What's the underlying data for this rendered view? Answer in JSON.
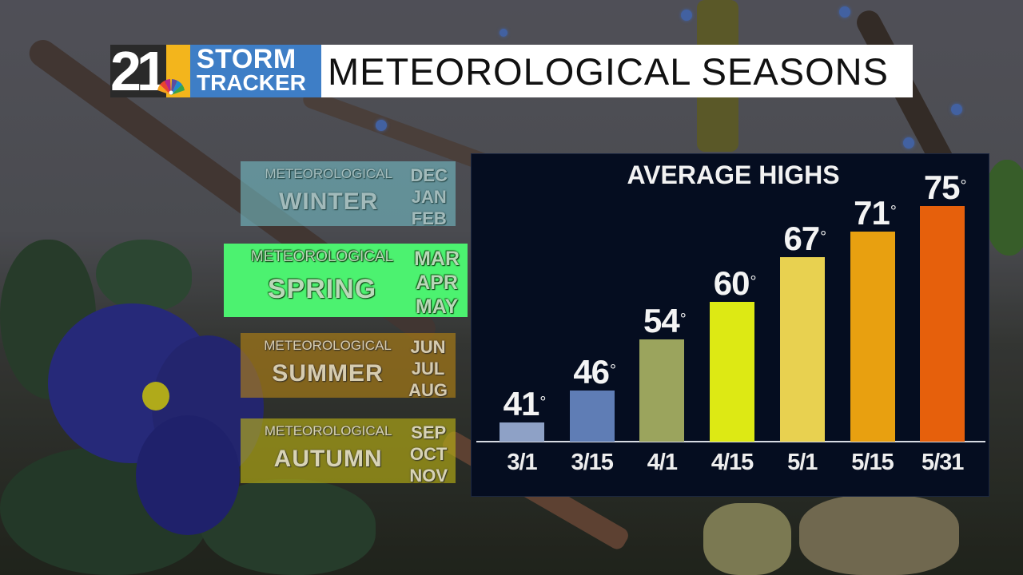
{
  "header": {
    "logo": {
      "channel_number": "21",
      "brand_line1": "STORM",
      "brand_line2": "TRACKER",
      "network_icon": "nbc-peacock-icon",
      "colors": {
        "number_bg": "#2a2a2a",
        "gold": "#f3b51c",
        "brand_bg": "#3e7ec6"
      }
    },
    "title": "METEOROLOGICAL SEASONS"
  },
  "seasons": [
    {
      "prefix": "METEOROLOGICAL",
      "name": "WINTER",
      "months": [
        "DEC",
        "JAN",
        "FEB"
      ],
      "color": "#78c8d2",
      "highlighted": false
    },
    {
      "prefix": "METEOROLOGICAL",
      "name": "SPRING",
      "months": [
        "MAR",
        "APR",
        "MAY"
      ],
      "color": "#4cf270",
      "highlighted": true
    },
    {
      "prefix": "METEOROLOGICAL",
      "name": "SUMMER",
      "months": [
        "JUN",
        "JUL",
        "AUG"
      ],
      "color": "#b48214",
      "highlighted": false
    },
    {
      "prefix": "METEOROLOGICAL",
      "name": "AUTUMN",
      "months": [
        "SEP",
        "OCT",
        "NOV"
      ],
      "color": "#beb414",
      "highlighted": false
    }
  ],
  "chart_data": {
    "type": "bar",
    "title": "AVERAGE HIGHS",
    "xlabel": "",
    "ylabel": "",
    "unit": "°",
    "categories": [
      "3/1",
      "3/15",
      "4/1",
      "4/15",
      "5/1",
      "5/15",
      "5/31"
    ],
    "values": [
      41,
      46,
      54,
      60,
      67,
      71,
      75
    ],
    "labels": [
      "41",
      "46",
      "54",
      "60",
      "67",
      "71",
      "75"
    ],
    "bar_colors": [
      "#8ea1c6",
      "#5f7db5",
      "#9ba45d",
      "#dde914",
      "#e8d150",
      "#e8a010",
      "#e6600c"
    ],
    "grid": false,
    "legend": null,
    "background": "#050d20"
  }
}
